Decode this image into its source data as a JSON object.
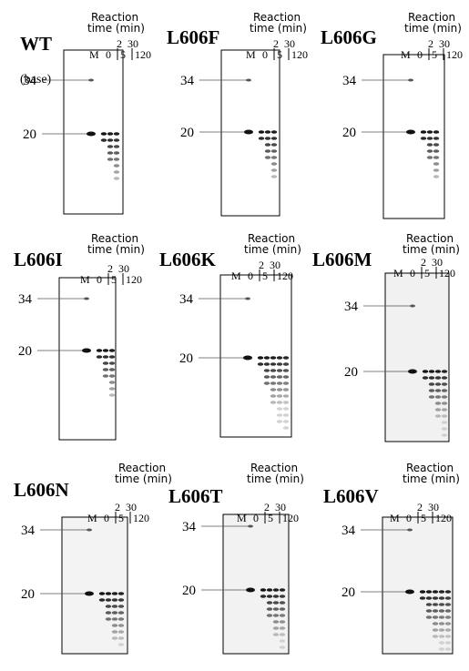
{
  "panels": [
    {
      "label": "WT",
      "note": "(base)",
      "reaction": [
        "Reaction",
        "time (min)"
      ],
      "lanes": [
        "M",
        "0",
        "2",
        "5",
        "30",
        "120"
      ],
      "markers": [
        "34",
        "20"
      ]
    },
    {
      "label": "L606F",
      "reaction": [
        "Reaction",
        "time (min)"
      ],
      "lanes": [
        "M",
        "0",
        "2",
        "5",
        "30",
        "120"
      ],
      "markers": [
        "34",
        "20"
      ]
    },
    {
      "label": "L606G",
      "reaction": [
        "Reaction",
        "time (min)"
      ],
      "lanes": [
        "M",
        "0",
        "2",
        "5",
        "30",
        "120"
      ],
      "markers": [
        "34",
        "20"
      ]
    },
    {
      "label": "L606I",
      "reaction": [
        "Reaction",
        "time (min)"
      ],
      "lanes": [
        "M",
        "0",
        "2",
        "5",
        "30",
        "120"
      ],
      "markers": [
        "34",
        "20"
      ]
    },
    {
      "label": "L606K",
      "reaction": [
        "Reaction",
        "time (min)"
      ],
      "lanes": [
        "M",
        "0",
        "2",
        "5",
        "30",
        "120"
      ],
      "markers": [
        "34",
        "20"
      ]
    },
    {
      "label": "L606M",
      "reaction": [
        "Reaction",
        "time (min)"
      ],
      "lanes": [
        "M",
        "0",
        "2",
        "5",
        "30",
        "120"
      ],
      "markers": [
        "34",
        "20"
      ]
    },
    {
      "label": "L606N",
      "reaction": [
        "Reaction",
        "time (min)"
      ],
      "lanes": [
        "M",
        "0",
        "2",
        "5",
        "30",
        "120"
      ],
      "markers": [
        "34",
        "20"
      ]
    },
    {
      "label": "L606T",
      "reaction": [
        "Reaction",
        "time (min)"
      ],
      "lanes": [
        "M",
        "0",
        "2",
        "5",
        "30",
        "120"
      ],
      "markers": [
        "34",
        "20"
      ]
    },
    {
      "label": "L606V",
      "reaction": [
        "Reaction",
        "time (min)"
      ],
      "lanes": [
        "M",
        "0",
        "2",
        "5",
        "30",
        "120"
      ],
      "markers": [
        "34",
        "20"
      ]
    }
  ]
}
